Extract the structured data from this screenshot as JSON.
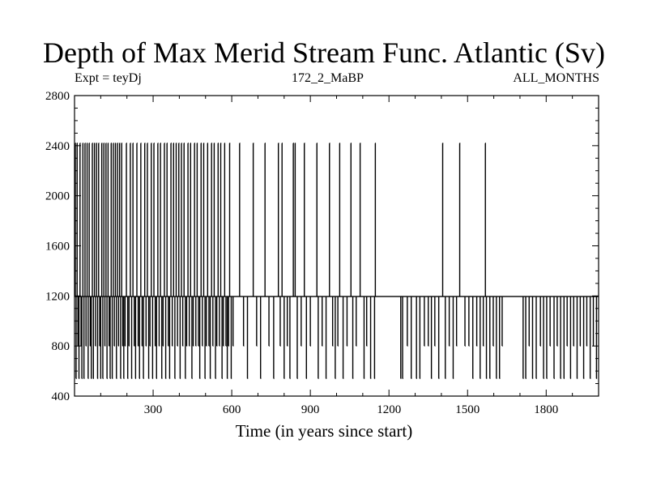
{
  "chart_data": {
    "type": "line",
    "title": "Depth of Max Merid Stream Func. Atlantic (Sv)",
    "subtitles": {
      "left": "Expt = teyDj",
      "center": "172_2_MaBP",
      "right": "ALL_MONTHS"
    },
    "xlabel": "Time (in years since start)",
    "ylabel": "",
    "xlim": [
      0,
      2000
    ],
    "ylim": [
      400,
      2800
    ],
    "xticks": [
      300,
      600,
      900,
      1200,
      1500,
      1800
    ],
    "yticks": [
      400,
      800,
      1200,
      1600,
      2000,
      2400,
      2800
    ],
    "baseline": 1195,
    "levels": [
      540,
      800,
      1195,
      2420
    ],
    "grid": false,
    "series": [
      {
        "spikes": [
          {
            "x": 3,
            "y": 2420
          },
          {
            "x": 6,
            "y": 540
          },
          {
            "x": 10,
            "y": 2420
          },
          {
            "x": 13,
            "y": 800
          },
          {
            "x": 17,
            "y": 540
          },
          {
            "x": 21,
            "y": 2420
          },
          {
            "x": 25,
            "y": 800
          },
          {
            "x": 28,
            "y": 540
          },
          {
            "x": 32,
            "y": 2420
          },
          {
            "x": 36,
            "y": 540
          },
          {
            "x": 40,
            "y": 2420
          },
          {
            "x": 44,
            "y": 800
          },
          {
            "x": 48,
            "y": 2420
          },
          {
            "x": 52,
            "y": 540
          },
          {
            "x": 56,
            "y": 2420
          },
          {
            "x": 60,
            "y": 800
          },
          {
            "x": 64,
            "y": 540
          },
          {
            "x": 68,
            "y": 2420
          },
          {
            "x": 72,
            "y": 540
          },
          {
            "x": 76,
            "y": 2420
          },
          {
            "x": 80,
            "y": 800
          },
          {
            "x": 84,
            "y": 2420
          },
          {
            "x": 88,
            "y": 540
          },
          {
            "x": 92,
            "y": 2420
          },
          {
            "x": 96,
            "y": 800
          },
          {
            "x": 100,
            "y": 540
          },
          {
            "x": 104,
            "y": 2420
          },
          {
            "x": 108,
            "y": 540
          },
          {
            "x": 112,
            "y": 2420
          },
          {
            "x": 116,
            "y": 800
          },
          {
            "x": 120,
            "y": 2420
          },
          {
            "x": 124,
            "y": 540
          },
          {
            "x": 128,
            "y": 2420
          },
          {
            "x": 132,
            "y": 800
          },
          {
            "x": 136,
            "y": 540
          },
          {
            "x": 140,
            "y": 2420
          },
          {
            "x": 144,
            "y": 540
          },
          {
            "x": 148,
            "y": 2420
          },
          {
            "x": 152,
            "y": 800
          },
          {
            "x": 156,
            "y": 2420
          },
          {
            "x": 160,
            "y": 540
          },
          {
            "x": 164,
            "y": 2420
          },
          {
            "x": 168,
            "y": 800
          },
          {
            "x": 172,
            "y": 2420
          },
          {
            "x": 176,
            "y": 540
          },
          {
            "x": 180,
            "y": 2420
          },
          {
            "x": 184,
            "y": 800
          },
          {
            "x": 188,
            "y": 540
          },
          {
            "x": 193,
            "y": 800
          },
          {
            "x": 198,
            "y": 2420
          },
          {
            "x": 203,
            "y": 540
          },
          {
            "x": 208,
            "y": 800
          },
          {
            "x": 213,
            "y": 2420
          },
          {
            "x": 218,
            "y": 540
          },
          {
            "x": 223,
            "y": 2420
          },
          {
            "x": 228,
            "y": 800
          },
          {
            "x": 233,
            "y": 540
          },
          {
            "x": 238,
            "y": 2420
          },
          {
            "x": 243,
            "y": 800
          },
          {
            "x": 248,
            "y": 540
          },
          {
            "x": 253,
            "y": 2420
          },
          {
            "x": 258,
            "y": 800
          },
          {
            "x": 263,
            "y": 540
          },
          {
            "x": 268,
            "y": 2420
          },
          {
            "x": 273,
            "y": 800
          },
          {
            "x": 278,
            "y": 2420
          },
          {
            "x": 283,
            "y": 540
          },
          {
            "x": 288,
            "y": 800
          },
          {
            "x": 293,
            "y": 2420
          },
          {
            "x": 298,
            "y": 540
          },
          {
            "x": 303,
            "y": 2420
          },
          {
            "x": 308,
            "y": 800
          },
          {
            "x": 313,
            "y": 540
          },
          {
            "x": 318,
            "y": 2420
          },
          {
            "x": 323,
            "y": 800
          },
          {
            "x": 328,
            "y": 2420
          },
          {
            "x": 333,
            "y": 540
          },
          {
            "x": 338,
            "y": 800
          },
          {
            "x": 343,
            "y": 2420
          },
          {
            "x": 348,
            "y": 540
          },
          {
            "x": 353,
            "y": 2420
          },
          {
            "x": 358,
            "y": 800
          },
          {
            "x": 363,
            "y": 540
          },
          {
            "x": 368,
            "y": 2420
          },
          {
            "x": 373,
            "y": 800
          },
          {
            "x": 378,
            "y": 2420
          },
          {
            "x": 383,
            "y": 540
          },
          {
            "x": 388,
            "y": 2420
          },
          {
            "x": 393,
            "y": 800
          },
          {
            "x": 398,
            "y": 2420
          },
          {
            "x": 403,
            "y": 540
          },
          {
            "x": 408,
            "y": 2420
          },
          {
            "x": 413,
            "y": 800
          },
          {
            "x": 418,
            "y": 2420
          },
          {
            "x": 423,
            "y": 540
          },
          {
            "x": 428,
            "y": 800
          },
          {
            "x": 433,
            "y": 2420
          },
          {
            "x": 438,
            "y": 800
          },
          {
            "x": 443,
            "y": 2420
          },
          {
            "x": 448,
            "y": 540
          },
          {
            "x": 453,
            "y": 800
          },
          {
            "x": 458,
            "y": 2420
          },
          {
            "x": 463,
            "y": 800
          },
          {
            "x": 468,
            "y": 2420
          },
          {
            "x": 473,
            "y": 800
          },
          {
            "x": 478,
            "y": 540
          },
          {
            "x": 483,
            "y": 2420
          },
          {
            "x": 488,
            "y": 800
          },
          {
            "x": 493,
            "y": 2420
          },
          {
            "x": 498,
            "y": 540
          },
          {
            "x": 503,
            "y": 800
          },
          {
            "x": 508,
            "y": 2420
          },
          {
            "x": 513,
            "y": 800
          },
          {
            "x": 518,
            "y": 540
          },
          {
            "x": 523,
            "y": 2420
          },
          {
            "x": 528,
            "y": 800
          },
          {
            "x": 533,
            "y": 2420
          },
          {
            "x": 538,
            "y": 540
          },
          {
            "x": 543,
            "y": 800
          },
          {
            "x": 548,
            "y": 2420
          },
          {
            "x": 553,
            "y": 800
          },
          {
            "x": 558,
            "y": 2420
          },
          {
            "x": 563,
            "y": 540
          },
          {
            "x": 568,
            "y": 800
          },
          {
            "x": 573,
            "y": 2420
          },
          {
            "x": 578,
            "y": 800
          },
          {
            "x": 583,
            "y": 540
          },
          {
            "x": 588,
            "y": 800
          },
          {
            "x": 592,
            "y": 2420
          },
          {
            "x": 598,
            "y": 540
          },
          {
            "x": 605,
            "y": 800
          },
          {
            "x": 630,
            "y": 2420
          },
          {
            "x": 645,
            "y": 800
          },
          {
            "x": 660,
            "y": 540
          },
          {
            "x": 682,
            "y": 2420
          },
          {
            "x": 695,
            "y": 800
          },
          {
            "x": 710,
            "y": 540
          },
          {
            "x": 727,
            "y": 2420
          },
          {
            "x": 742,
            "y": 800
          },
          {
            "x": 760,
            "y": 540
          },
          {
            "x": 778,
            "y": 2420
          },
          {
            "x": 785,
            "y": 800
          },
          {
            "x": 792,
            "y": 2420
          },
          {
            "x": 800,
            "y": 540
          },
          {
            "x": 812,
            "y": 800
          },
          {
            "x": 822,
            "y": 540
          },
          {
            "x": 835,
            "y": 2420
          },
          {
            "x": 842,
            "y": 2420
          },
          {
            "x": 850,
            "y": 540
          },
          {
            "x": 865,
            "y": 800
          },
          {
            "x": 877,
            "y": 2420
          },
          {
            "x": 885,
            "y": 540
          },
          {
            "x": 900,
            "y": 800
          },
          {
            "x": 925,
            "y": 2420
          },
          {
            "x": 930,
            "y": 540
          },
          {
            "x": 945,
            "y": 800
          },
          {
            "x": 960,
            "y": 540
          },
          {
            "x": 973,
            "y": 2420
          },
          {
            "x": 985,
            "y": 800
          },
          {
            "x": 995,
            "y": 540
          },
          {
            "x": 1005,
            "y": 800
          },
          {
            "x": 1012,
            "y": 2420
          },
          {
            "x": 1025,
            "y": 540
          },
          {
            "x": 1040,
            "y": 800
          },
          {
            "x": 1055,
            "y": 2420
          },
          {
            "x": 1062,
            "y": 540
          },
          {
            "x": 1075,
            "y": 800
          },
          {
            "x": 1090,
            "y": 2420
          },
          {
            "x": 1105,
            "y": 540
          },
          {
            "x": 1115,
            "y": 800
          },
          {
            "x": 1130,
            "y": 540
          },
          {
            "x": 1145,
            "y": 540
          },
          {
            "x": 1148,
            "y": 2420
          },
          {
            "x": 1245,
            "y": 540
          },
          {
            "x": 1252,
            "y": 540
          },
          {
            "x": 1270,
            "y": 800
          },
          {
            "x": 1285,
            "y": 540
          },
          {
            "x": 1305,
            "y": 540
          },
          {
            "x": 1318,
            "y": 540
          },
          {
            "x": 1335,
            "y": 800
          },
          {
            "x": 1350,
            "y": 800
          },
          {
            "x": 1362,
            "y": 540
          },
          {
            "x": 1375,
            "y": 800
          },
          {
            "x": 1390,
            "y": 540
          },
          {
            "x": 1405,
            "y": 2420
          },
          {
            "x": 1415,
            "y": 540
          },
          {
            "x": 1430,
            "y": 800
          },
          {
            "x": 1445,
            "y": 540
          },
          {
            "x": 1458,
            "y": 800
          },
          {
            "x": 1470,
            "y": 2420
          },
          {
            "x": 1490,
            "y": 800
          },
          {
            "x": 1505,
            "y": 800
          },
          {
            "x": 1520,
            "y": 540
          },
          {
            "x": 1535,
            "y": 800
          },
          {
            "x": 1548,
            "y": 540
          },
          {
            "x": 1560,
            "y": 800
          },
          {
            "x": 1568,
            "y": 2420
          },
          {
            "x": 1572,
            "y": 540
          },
          {
            "x": 1585,
            "y": 540
          },
          {
            "x": 1598,
            "y": 800
          },
          {
            "x": 1610,
            "y": 540
          },
          {
            "x": 1622,
            "y": 540
          },
          {
            "x": 1632,
            "y": 800
          },
          {
            "x": 1712,
            "y": 540
          },
          {
            "x": 1722,
            "y": 540
          },
          {
            "x": 1735,
            "y": 800
          },
          {
            "x": 1748,
            "y": 540
          },
          {
            "x": 1762,
            "y": 540
          },
          {
            "x": 1778,
            "y": 800
          },
          {
            "x": 1790,
            "y": 540
          },
          {
            "x": 1802,
            "y": 540
          },
          {
            "x": 1815,
            "y": 800
          },
          {
            "x": 1830,
            "y": 540
          },
          {
            "x": 1842,
            "y": 800
          },
          {
            "x": 1855,
            "y": 540
          },
          {
            "x": 1868,
            "y": 540
          },
          {
            "x": 1880,
            "y": 800
          },
          {
            "x": 1893,
            "y": 540
          },
          {
            "x": 1905,
            "y": 800
          },
          {
            "x": 1918,
            "y": 540
          },
          {
            "x": 1930,
            "y": 800
          },
          {
            "x": 1943,
            "y": 540
          },
          {
            "x": 1955,
            "y": 800
          },
          {
            "x": 1968,
            "y": 540
          },
          {
            "x": 1980,
            "y": 800
          },
          {
            "x": 1992,
            "y": 540
          }
        ]
      }
    ]
  }
}
